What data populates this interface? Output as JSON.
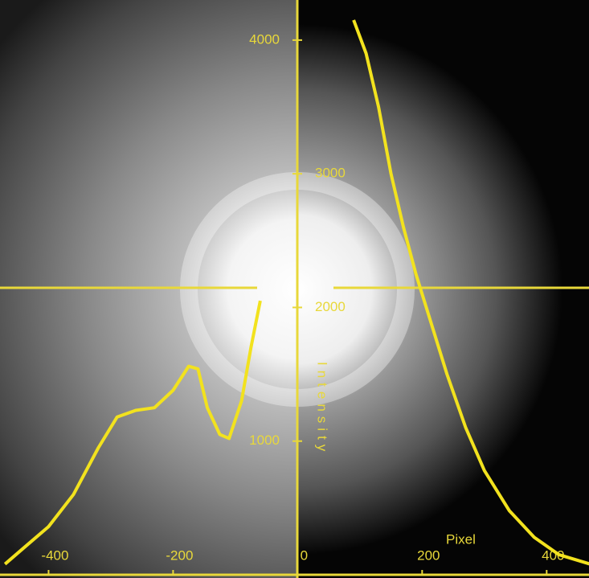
{
  "chart_data": {
    "type": "line",
    "x_label": "Pixel",
    "y_label": "Intensity",
    "x": [
      -470,
      -440,
      -400,
      -360,
      -320,
      -290,
      -260,
      -230,
      -200,
      -175,
      -160,
      -145,
      -125,
      -110,
      -90,
      -75,
      -60,
      0,
      90,
      110,
      130,
      150,
      170,
      190,
      210,
      240,
      270,
      300,
      340,
      380,
      420,
      470
    ],
    "series": [
      {
        "color": "#f2e21e",
        "values": [
          80,
          200,
          360,
          600,
          950,
          1180,
          1230,
          1250,
          1380,
          1560,
          1540,
          1250,
          1050,
          1020,
          1300,
          1700,
          2050,
          null,
          4150,
          3900,
          3500,
          3000,
          2600,
          2250,
          1950,
          1500,
          1100,
          780,
          480,
          280,
          150,
          80
        ]
      }
    ],
    "xlim": [
      -478,
      468
    ],
    "xticks": [
      -400,
      -200,
      0,
      200,
      400
    ],
    "ylim": [
      0,
      4300
    ],
    "yticks": [
      1000,
      2000,
      3000,
      4000
    ]
  }
}
